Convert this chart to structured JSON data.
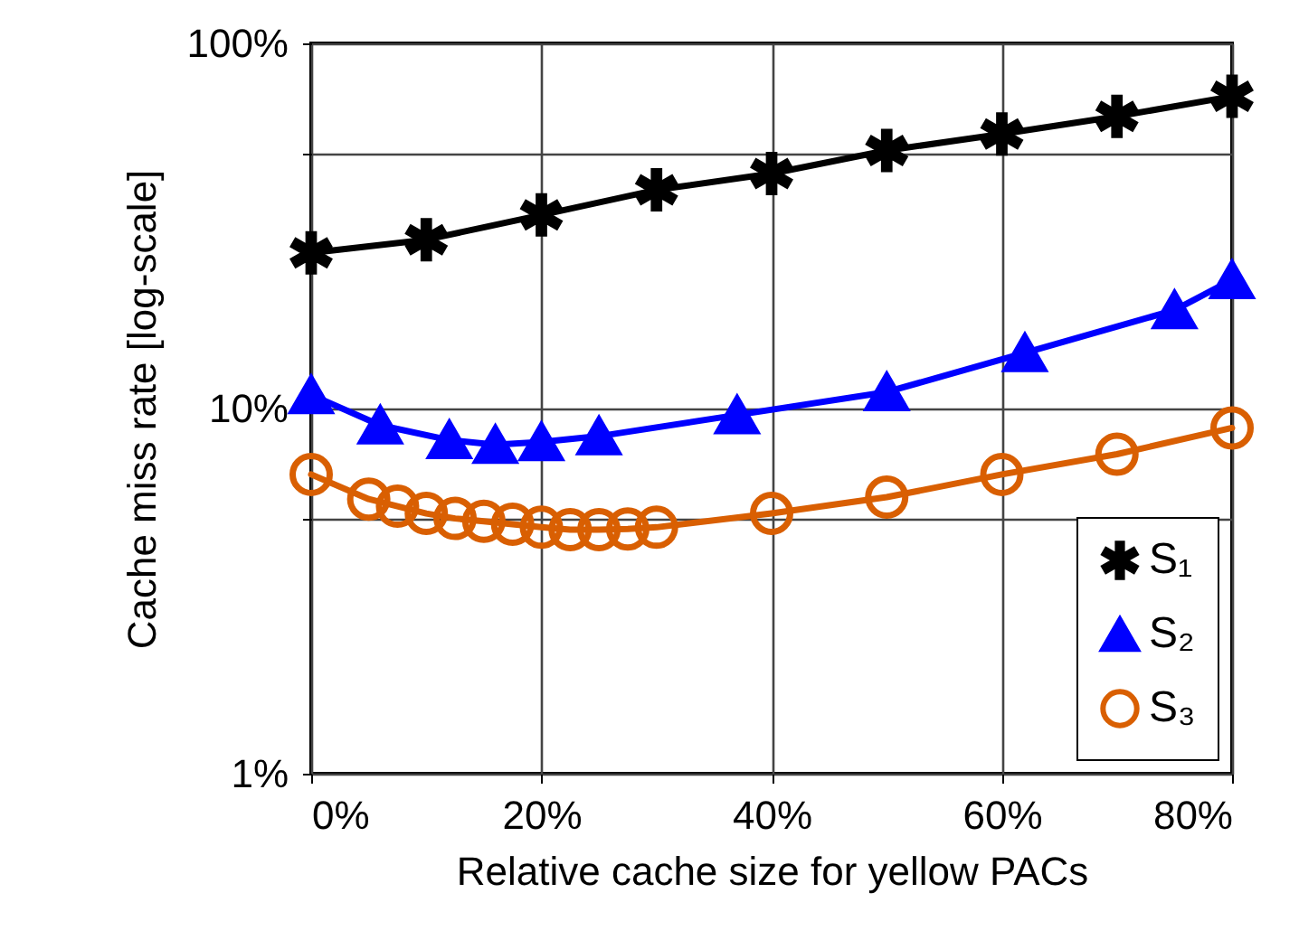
{
  "chart_data": {
    "type": "line",
    "xlabel": "Relative cache size for yellow PACs",
    "ylabel": "Cache miss rate [log-scale]",
    "series": [
      {
        "name": "S₁",
        "color": "#000000",
        "marker": "cross",
        "x": [
          0,
          10,
          20,
          30,
          40,
          50,
          60,
          70,
          80
        ],
        "values": [
          26.7,
          29.0,
          33.9,
          39.7,
          44,
          50.9,
          56.5,
          63.1,
          71.6
        ]
      },
      {
        "name": "S₂",
        "color": "#0000ff",
        "marker": "triangle",
        "x": [
          0,
          6,
          12,
          16,
          20,
          25,
          37,
          50,
          62,
          75,
          80
        ],
        "values": [
          10.9,
          9.0,
          8.2,
          7.96,
          8.1,
          8.4,
          9.6,
          11.1,
          14.2,
          18.6,
          22.5
        ]
      },
      {
        "name": "S₃",
        "color": "#d95f02",
        "marker": "circle",
        "x": [
          0,
          5,
          7.5,
          10,
          12.5,
          15,
          17.5,
          20,
          22.5,
          25,
          27.5,
          30,
          40,
          50,
          60,
          70,
          80
        ],
        "values": [
          6.6,
          5.65,
          5.4,
          5.16,
          5.0,
          4.91,
          4.82,
          4.73,
          4.66,
          4.66,
          4.68,
          4.73,
          5.16,
          5.72,
          6.6,
          7.5,
          8.85
        ]
      }
    ],
    "xlim": [
      0,
      80
    ],
    "xticks": [
      {
        "value": 0,
        "label": "0%"
      },
      {
        "value": 20,
        "label": "20%"
      },
      {
        "value": 40,
        "label": "40%"
      },
      {
        "value": 60,
        "label": "60%"
      },
      {
        "value": 80,
        "label": "80%"
      }
    ],
    "ylim": [
      1,
      100
    ],
    "yticks": [
      {
        "value": 1,
        "label": "1%"
      },
      {
        "value": 5,
        "label": null
      },
      {
        "value": 10,
        "label": "10%"
      },
      {
        "value": 50,
        "label": null
      },
      {
        "value": 100,
        "label": "100%"
      }
    ],
    "log": true,
    "grid": true,
    "legend": "bottom right",
    "line_style": "solid"
  }
}
